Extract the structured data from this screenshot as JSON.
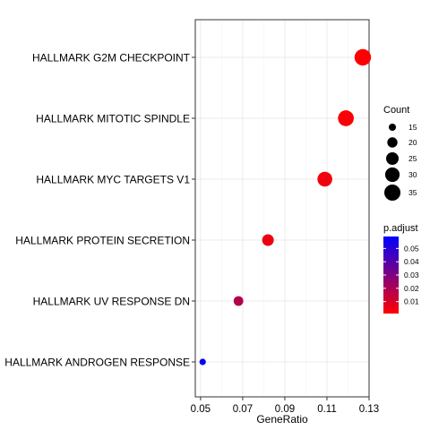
{
  "chart_data": {
    "type": "scatter",
    "xlabel": "GeneRatio",
    "xlim": [
      0.0475,
      0.13
    ],
    "xticks": [
      0.05,
      0.07,
      0.09,
      0.11,
      0.13
    ],
    "xtick_labels": [
      "0.05",
      "0.07",
      "0.09",
      "0.11",
      "0.13"
    ],
    "grid": true,
    "categories": [
      "HALLMARK G2M CHECKPOINT",
      "HALLMARK MITOTIC SPINDLE",
      "HALLMARK MYC TARGETS V1",
      "HALLMARK PROTEIN SECRETION",
      "HALLMARK UV RESPONSE DN",
      "HALLMARK ANDROGEN RESPONSE"
    ],
    "points": [
      {
        "category": "HALLMARK G2M CHECKPOINT",
        "x": 0.127,
        "count": 36,
        "p_adjust": 0.001
      },
      {
        "category": "HALLMARK MITOTIC SPINDLE",
        "x": 0.119,
        "count": 34,
        "p_adjust": 0.002
      },
      {
        "category": "HALLMARK MYC TARGETS V1",
        "x": 0.109,
        "count": 31,
        "p_adjust": 0.004
      },
      {
        "category": "HALLMARK PROTEIN SECRETION",
        "x": 0.082,
        "count": 23,
        "p_adjust": 0.005
      },
      {
        "category": "HALLMARK UV RESPONSE DN",
        "x": 0.068,
        "count": 19,
        "p_adjust": 0.018
      },
      {
        "category": "HALLMARK ANDROGEN RESPONSE",
        "x": 0.051,
        "count": 14,
        "p_adjust": 0.058
      }
    ],
    "size_legend": {
      "title": "Count",
      "values": [
        15,
        20,
        25,
        30,
        35
      ],
      "labels": [
        "15",
        "20",
        "25",
        "30",
        "35"
      ]
    },
    "color_legend": {
      "title": "p.adjust",
      "range": [
        0.001,
        0.059
      ],
      "values": [
        0.05,
        0.04,
        0.03,
        0.02,
        0.01
      ],
      "labels": [
        "0.05",
        "0.04",
        "0.03",
        "0.02",
        "0.01"
      ],
      "low_color": "#ff0000",
      "high_color": "#0000ff"
    },
    "count_range": [
      14,
      36
    ],
    "legend_position": "right"
  }
}
